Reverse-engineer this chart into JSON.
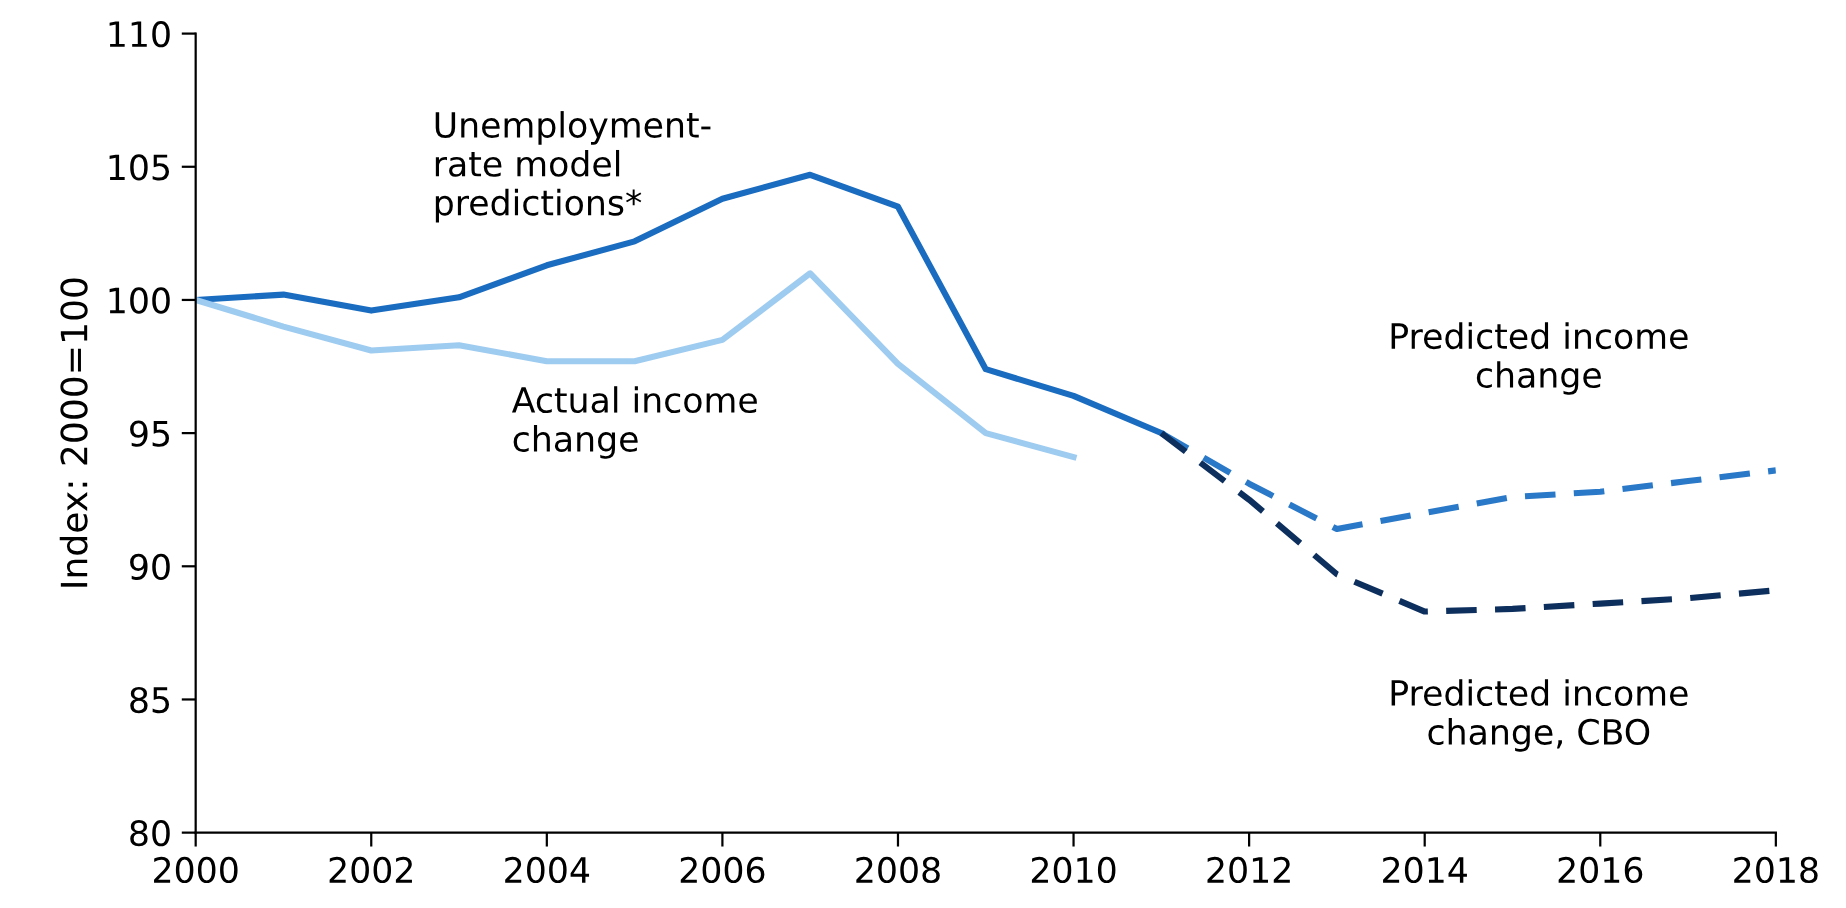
{
  "chart_data": {
    "type": "line",
    "ylabel": "Index: 2000=100",
    "xlim": [
      2000,
      2018
    ],
    "xticks": [
      2000,
      2002,
      2004,
      2006,
      2008,
      2010,
      2012,
      2014,
      2016,
      2018
    ],
    "ylim": [
      80,
      110
    ],
    "yticks": [
      80,
      85,
      90,
      95,
      100,
      105,
      110
    ],
    "grid": false,
    "legend": false,
    "series": [
      {
        "name": "Unemployment-\nrate model\npredictions*",
        "color": "#1a6cc0",
        "line_style": "solid",
        "x": [
          2000,
          2001,
          2002,
          2003,
          2004,
          2005,
          2006,
          2007,
          2008,
          2009,
          2010,
          2011
        ],
        "values": [
          100,
          100.2,
          99.6,
          100.1,
          101.3,
          102.2,
          103.8,
          104.7,
          103.5,
          97.4,
          96.4,
          95.0
        ]
      },
      {
        "name": "Actual income\nchange",
        "color": "#9ecbf0",
        "line_style": "solid",
        "x": [
          2000,
          2001,
          2002,
          2003,
          2004,
          2005,
          2006,
          2007,
          2008,
          2009,
          2010
        ],
        "values": [
          100,
          99.0,
          98.1,
          98.3,
          97.7,
          97.7,
          98.5,
          101.0,
          97.6,
          95.0,
          94.1
        ]
      },
      {
        "name": "Predicted income\nchange",
        "color": "#2a78c8",
        "line_style": "dashed",
        "x": [
          2011,
          2012,
          2013,
          2014,
          2015,
          2016,
          2017,
          2018
        ],
        "values": [
          95.0,
          93.1,
          91.4,
          92.0,
          92.6,
          92.8,
          93.2,
          93.6
        ]
      },
      {
        "name": "Predicted income\nchange, CBO",
        "color": "#0d2f5e",
        "line_style": "dashed",
        "x": [
          2011,
          2012,
          2013,
          2014,
          2015,
          2016,
          2017,
          2018
        ],
        "values": [
          95.0,
          92.5,
          89.7,
          88.3,
          88.4,
          88.6,
          88.8,
          89.1
        ]
      }
    ]
  }
}
